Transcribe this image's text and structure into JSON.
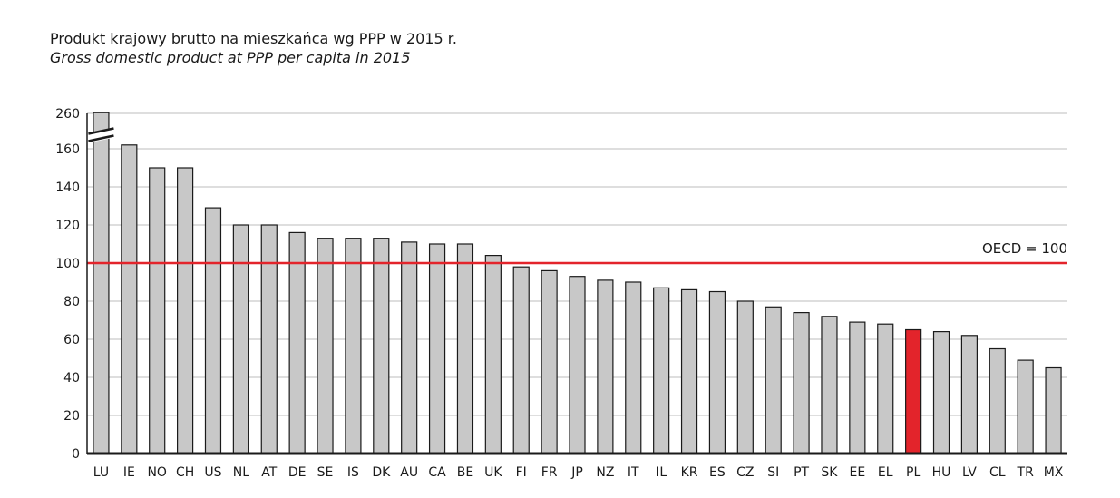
{
  "chart_data": {
    "type": "bar",
    "title": "Produkt krajowy brutto na mieszkańca wg PPP w 2015 r.",
    "subtitle": "Gross domestic product at PPP per capita in 2015",
    "categories": [
      "LU",
      "IE",
      "NO",
      "CH",
      "US",
      "NL",
      "AT",
      "DE",
      "SE",
      "IS",
      "DK",
      "AU",
      "CA",
      "BE",
      "UK",
      "FI",
      "FR",
      "JP",
      "NZ",
      "IT",
      "IL",
      "KR",
      "ES",
      "CZ",
      "SI",
      "PT",
      "SK",
      "EE",
      "EL",
      "PL",
      "HU",
      "LV",
      "CL",
      "TR",
      "MX"
    ],
    "values": [
      264,
      162,
      150,
      150,
      129,
      120,
      120,
      116,
      113,
      113,
      113,
      111,
      110,
      110,
      104,
      98,
      96,
      93,
      91,
      90,
      87,
      86,
      85,
      80,
      77,
      74,
      72,
      69,
      68,
      65,
      64,
      62,
      55,
      49,
      45
    ],
    "highlight_category": "PL",
    "axis_break": true,
    "yticks": [
      0,
      20,
      40,
      60,
      80,
      100,
      120,
      140,
      160,
      260
    ],
    "ylim": [
      0,
      260
    ],
    "reference_line": {
      "value": 100,
      "label": "OECD = 100"
    },
    "colors": {
      "bar": "#c8c8c8",
      "bar_stroke": "#1a1a1a",
      "highlight": "#e3242b",
      "reference": "#e3242b",
      "grid": "#bdbdbd",
      "axis": "#1a1a1a"
    },
    "grid": true
  }
}
